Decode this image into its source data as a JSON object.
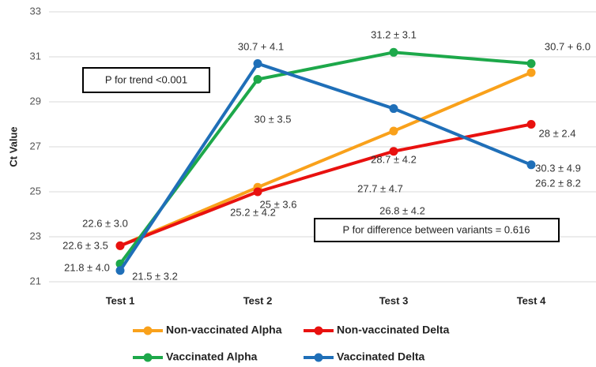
{
  "chart_data": {
    "type": "line",
    "ylabel": "Ct Value",
    "categories": [
      "Test 1",
      "Test 2",
      "Test 3",
      "Test 4"
    ],
    "ylim": [
      21,
      33
    ],
    "yticks": [
      21,
      23,
      25,
      27,
      29,
      31,
      33
    ],
    "grid": true,
    "annotations": [
      "P for trend <0.001",
      "P for difference between variants = 0.616"
    ],
    "series": [
      {
        "name": "Non-vaccinated Alpha",
        "color": "#F9A11B",
        "values": [
          22.6,
          25.2,
          27.7,
          30.3
        ],
        "value_labels": [
          "22.6 ± 3.0",
          "25.2 ± 4.2",
          "27.7 ± 4.7",
          "30.3 ± 4.9"
        ]
      },
      {
        "name": "Non-vaccinated Delta",
        "color": "#E8110F",
        "values": [
          22.6,
          25,
          26.8,
          28
        ],
        "value_labels": [
          "22.6 ± 3.5",
          "25 ± 3.6",
          "26.8 ± 4.2",
          "28 ± 2.4"
        ]
      },
      {
        "name": "Vaccinated Alpha",
        "color": "#1DA84A",
        "values": [
          21.8,
          30,
          31.2,
          30.7
        ],
        "value_labels": [
          "21.8 ± 4.0",
          "30 ± 3.5",
          "31.2 ± 3.1",
          "30.7 + 6.0"
        ]
      },
      {
        "name": "Vaccinated Delta",
        "color": "#1F6FB8",
        "values": [
          21.5,
          30.7,
          28.7,
          26.2
        ],
        "value_labels": [
          "21.5 ± 3.2",
          "30.7 + 4.1",
          "28.7 ± 4.2",
          "26.2 ± 8.2"
        ]
      }
    ]
  }
}
